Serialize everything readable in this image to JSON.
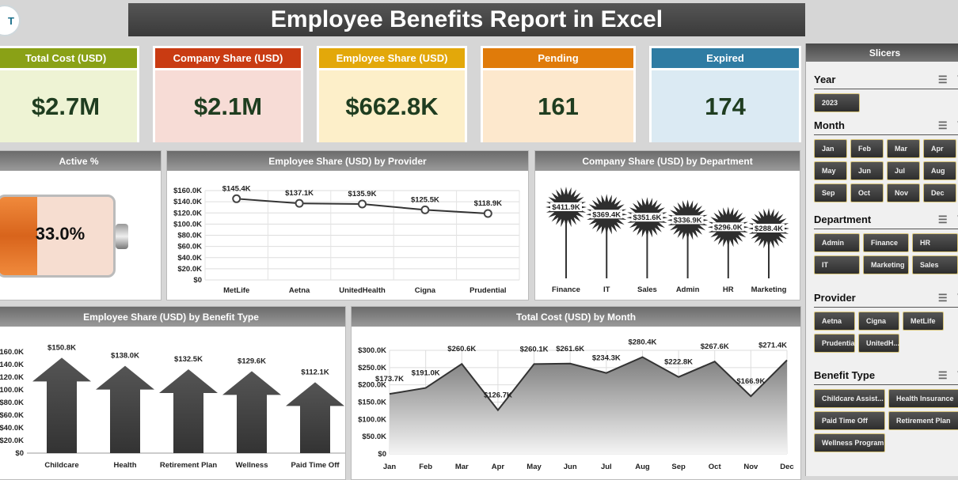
{
  "header": {
    "logo_text": "T",
    "title": "Employee Benefits Report in Excel"
  },
  "kpis": [
    {
      "label": "Total Cost (USD)",
      "value": "$2.7M",
      "header_color": "#8aa116",
      "body_color": "#eef3d4"
    },
    {
      "label": "Company Share (USD)",
      "value": "$2.1M",
      "header_color": "#c93b12",
      "body_color": "#f7dcd6"
    },
    {
      "label": "Employee Share (USD)",
      "value": "$662.8K",
      "header_color": "#e3a80a",
      "body_color": "#fdefc9"
    },
    {
      "label": "Pending",
      "value": "161",
      "header_color": "#e07b0a",
      "body_color": "#fde8cd"
    },
    {
      "label": "Expired",
      "value": "174",
      "header_color": "#2f7ca3",
      "body_color": "#dbeaf3"
    }
  ],
  "active": {
    "title": "Active %",
    "value": "33.0%",
    "fraction": 0.33
  },
  "chart_data": [
    {
      "id": "provider",
      "type": "line",
      "title": "Employee Share (USD) by Provider",
      "categories": [
        "MetLife",
        "Aetna",
        "UnitedHealth",
        "Cigna",
        "Prudential"
      ],
      "values": [
        145.4,
        137.1,
        135.9,
        125.5,
        118.9
      ],
      "labels": [
        "$145.4K",
        "$137.1K",
        "$135.9K",
        "$125.5K",
        "$118.9K"
      ],
      "ylim": [
        0,
        160
      ],
      "yticks": [
        "$0",
        "$20.0K",
        "$40.0K",
        "$60.0K",
        "$80.0K",
        "$100.0K",
        "$120.0K",
        "$140.0K",
        "$160.0K"
      ],
      "grid": true
    },
    {
      "id": "department",
      "type": "bar",
      "title": "Company Share (USD) by Department",
      "categories": [
        "Finance",
        "IT",
        "Sales",
        "Admin",
        "HR",
        "Marketing"
      ],
      "values": [
        411.9,
        369.4,
        351.6,
        336.9,
        296.0,
        288.4
      ],
      "labels": [
        "$411.9K",
        "$369.4K",
        "$351.6K",
        "$336.9K",
        "$296.0K",
        "$288.4K"
      ]
    },
    {
      "id": "benefit",
      "type": "bar",
      "title": "Employee Share (USD) by Benefit Type",
      "categories": [
        "Childcare Assist...",
        "Health Insurance",
        "Retirement Plan",
        "Wellness Program",
        "Paid Time Off"
      ],
      "tick_labels": [
        "Childcare",
        "Health",
        "Retirement Plan",
        "Wellness",
        "Paid Time Off"
      ],
      "values": [
        150.8,
        138.0,
        132.5,
        129.6,
        112.1
      ],
      "labels": [
        "$150.8K",
        "$138.0K",
        "$132.5K",
        "$129.6K",
        "$112.1K"
      ],
      "ylim": [
        0,
        160
      ],
      "yticks": [
        "$0",
        "$20.0K",
        "$40.0K",
        "$60.0K",
        "$80.0K",
        "100.0K",
        "120.0K",
        "140.0K",
        "160.0K"
      ]
    },
    {
      "id": "month",
      "type": "area",
      "title": "Total Cost (USD) by Month",
      "categories": [
        "Jan",
        "Feb",
        "Mar",
        "Apr",
        "May",
        "Jun",
        "Jul",
        "Aug",
        "Sep",
        "Oct",
        "Nov",
        "Dec"
      ],
      "values": [
        173.7,
        191.0,
        260.6,
        126.7,
        260.1,
        261.6,
        234.3,
        280.4,
        222.8,
        267.6,
        166.9,
        271.4
      ],
      "labels": [
        "$173.7K",
        "$191.0K",
        "$260.6K",
        "$126.7K",
        "$260.1K",
        "$261.6K",
        "$234.3K",
        "$280.4K",
        "$222.8K",
        "$267.6K",
        "$166.9K",
        "$271.4K"
      ],
      "ylim": [
        0,
        300
      ],
      "yticks": [
        "$0",
        "$50.0K",
        "$100.0K",
        "$150.0K",
        "$200.0K",
        "$250.0K",
        "$300.0K"
      ],
      "grid": true
    }
  ],
  "slicers": {
    "title": "Slicers",
    "groups": [
      {
        "name": "Year",
        "items": [
          "2023"
        ]
      },
      {
        "name": "Month",
        "items": [
          "Jan",
          "Feb",
          "Mar",
          "Apr",
          "May",
          "Jun",
          "Jul",
          "Aug",
          "Sep",
          "Oct",
          "Nov",
          "Dec"
        ]
      },
      {
        "name": "Department",
        "items": [
          "Admin",
          "Finance",
          "HR",
          "IT",
          "Marketing",
          "Sales"
        ]
      },
      {
        "name": "Provider",
        "items": [
          "Aetna",
          "Cigna",
          "MetLife",
          "Prudential",
          "UnitedH..."
        ]
      },
      {
        "name": "Benefit Type",
        "items": [
          "Childcare Assist...",
          "Health Insurance",
          "Paid Time Off",
          "Retirement Plan",
          "Wellness Program"
        ]
      }
    ]
  }
}
